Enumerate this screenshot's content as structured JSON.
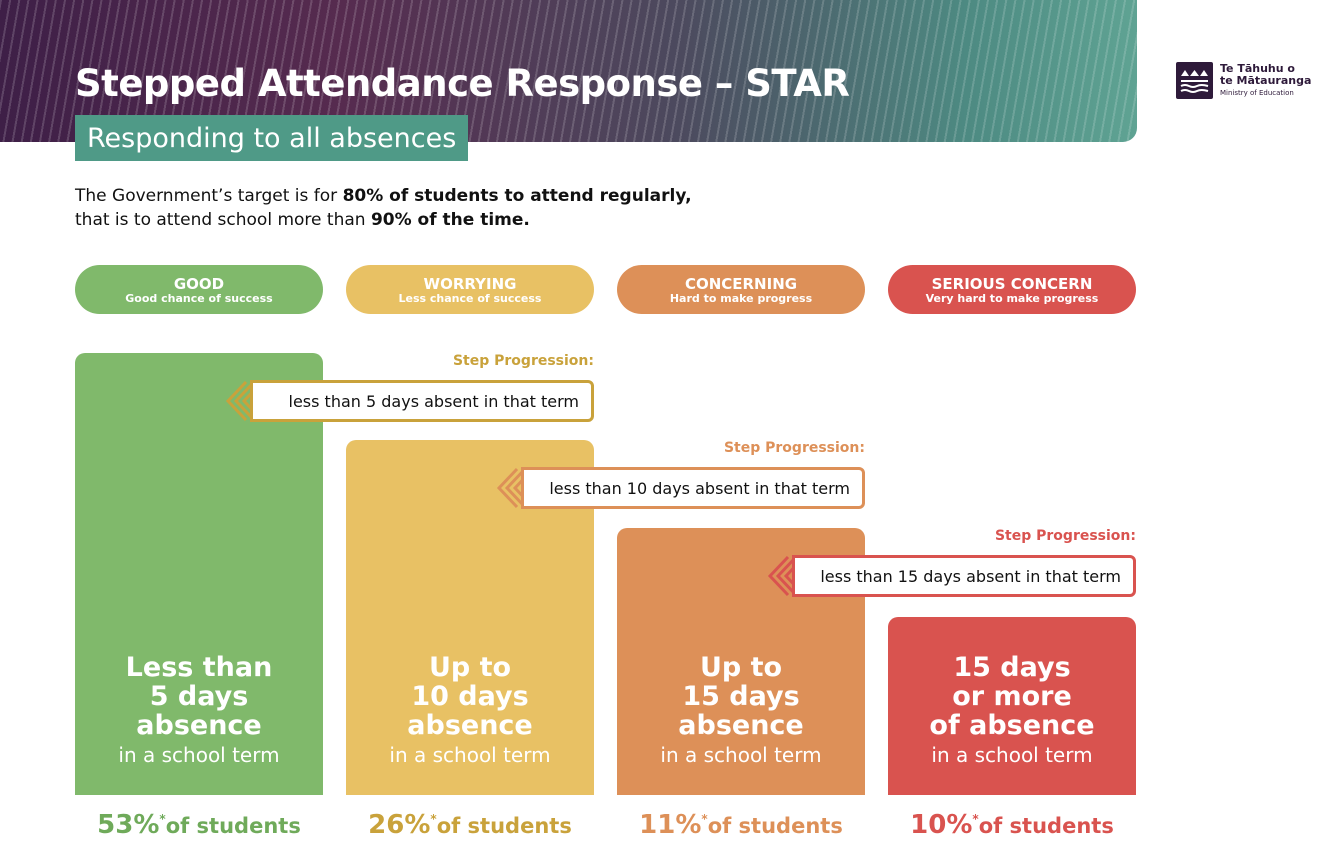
{
  "header": {
    "title": "Stepped Attendance Response – STAR",
    "subtitle": "Responding to all absences"
  },
  "logo": {
    "line1": "Te Tāhuhu o",
    "line2": "te Mātauranga",
    "line3": "Ministry of Education"
  },
  "intro": {
    "line1_pre": "The Government’s target is for ",
    "line1_bold": "80% of students to attend regularly,",
    "line2_pre": "that is to attend school more than ",
    "line2_bold": "90% of the time."
  },
  "categories": [
    {
      "name": "GOOD",
      "desc": "Good chance of success",
      "color": "#80b96b"
    },
    {
      "name": "WORRYING",
      "desc": "Less chance of success",
      "color": "#e8c164"
    },
    {
      "name": "CONCERNING",
      "desc": "Hard to make progress",
      "color": "#dd9058"
    },
    {
      "name": "SERIOUS CONCERN",
      "desc": "Very hard to make progress",
      "color": "#d9534f"
    }
  ],
  "steps": [
    {
      "label": "Step Progression:",
      "text": "less than 5 days absent in that term",
      "color": "#c9a23b"
    },
    {
      "label": "Step Progression:",
      "text": "less than 10 days absent in that term",
      "color": "#dd9058"
    },
    {
      "label": "Step Progression:",
      "text": "less than 15 days absent in that term",
      "color": "#d9534f"
    }
  ],
  "chart_data": {
    "type": "bar",
    "categories": [
      "GOOD",
      "WORRYING",
      "CONCERNING",
      "SERIOUS CONCERN"
    ],
    "bars": [
      {
        "line1": "Less than",
        "line2": "5 days",
        "line3": "absence",
        "line4": "in a school term"
      },
      {
        "line1": "Up to",
        "line2": "10 days",
        "line3": "absence",
        "line4": "in a school term"
      },
      {
        "line1": "Up to",
        "line2": "15 days",
        "line3": "absence",
        "line4": "in a school term"
      },
      {
        "line1": "15 days",
        "line2": "or more",
        "line3": "of absence",
        "line4": "in a school term"
      }
    ],
    "series": [
      {
        "values": [
          53,
          26,
          11,
          10
        ]
      }
    ],
    "percent_labels": [
      "53%",
      "26%",
      "11%",
      "10%"
    ],
    "percent_marker": "*",
    "percent_suffix": "of students",
    "colors": [
      "#80b96b",
      "#e8c164",
      "#dd9058",
      "#d9534f"
    ],
    "pct_text_colors": [
      "#6faa5a",
      "#c9a23b",
      "#dd9058",
      "#d9534f"
    ]
  }
}
